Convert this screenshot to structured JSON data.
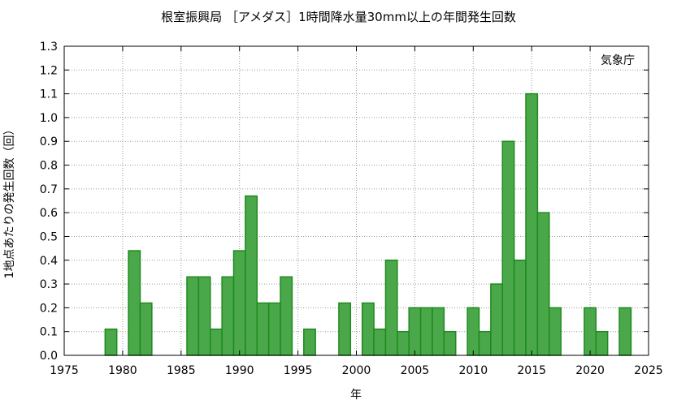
{
  "chart_data": {
    "type": "bar",
    "title": "根室振興局 ［アメダス］1時間降水量30mm以上の年間発生回数",
    "xlabel": "年",
    "ylabel": "1地点あたりの発生回数（回）",
    "annotation": "気象庁",
    "xlim": [
      1975,
      2025
    ],
    "ylim": [
      0,
      1.3
    ],
    "x_ticks": [
      "1975",
      "1980",
      "1985",
      "1990",
      "1995",
      "2000",
      "2005",
      "2010",
      "2015",
      "2020",
      "2025"
    ],
    "y_ticks": [
      "0.0",
      "0.1",
      "0.2",
      "0.3",
      "0.4",
      "0.5",
      "0.6",
      "0.7",
      "0.8",
      "0.9",
      "1.0",
      "1.1",
      "1.2",
      "1.3"
    ],
    "grid": true,
    "bar_color": "#4aa84a",
    "bar_edge_color": "#1e8a1e",
    "x": [
      1979,
      1981,
      1982,
      1986,
      1987,
      1988,
      1989,
      1990,
      1991,
      1992,
      1993,
      1994,
      1996,
      1999,
      2001,
      2002,
      2003,
      2004,
      2005,
      2006,
      2007,
      2008,
      2010,
      2011,
      2012,
      2013,
      2014,
      2015,
      2016,
      2017,
      2020,
      2021,
      2023
    ],
    "values": [
      0.11,
      0.44,
      0.22,
      0.33,
      0.33,
      0.11,
      0.33,
      0.44,
      0.67,
      0.22,
      0.22,
      0.33,
      0.11,
      0.22,
      0.22,
      0.11,
      0.4,
      0.1,
      0.2,
      0.2,
      0.2,
      0.1,
      0.2,
      0.1,
      0.3,
      0.9,
      0.4,
      1.1,
      0.6,
      0.2,
      0.2,
      0.1,
      0.2
    ]
  }
}
